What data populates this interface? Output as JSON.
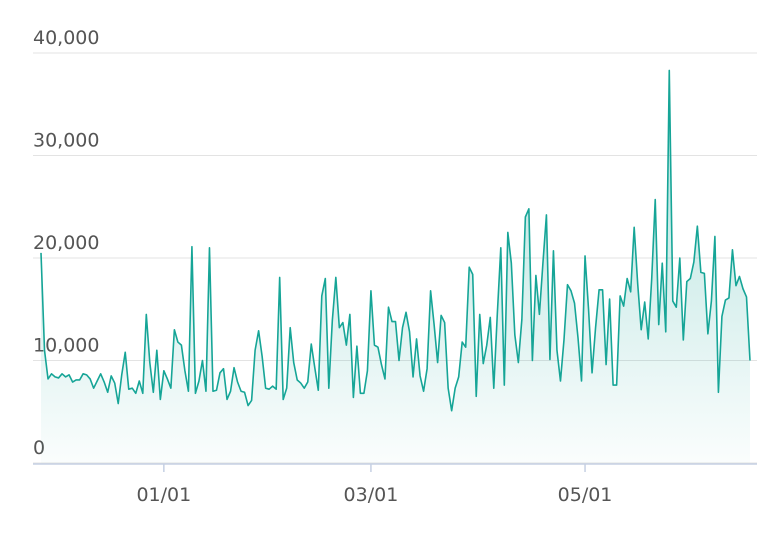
{
  "chart_data": {
    "type": "area",
    "categories": [
      null,
      null,
      null,
      null,
      null,
      null,
      null,
      null,
      null,
      null,
      null,
      null,
      null,
      null,
      null,
      null,
      null,
      null,
      null,
      null,
      null,
      null,
      null,
      null,
      null,
      null,
      null,
      null,
      null,
      null,
      null,
      null,
      null,
      null,
      null,
      "01/01",
      null,
      null,
      null,
      null,
      null,
      null,
      null,
      null,
      null,
      null,
      null,
      null,
      null,
      null,
      null,
      null,
      null,
      null,
      null,
      null,
      null,
      null,
      null,
      null,
      null,
      null,
      null,
      null,
      null,
      null,
      null,
      null,
      null,
      null,
      null,
      null,
      null,
      null,
      null,
      null,
      null,
      null,
      null,
      null,
      null,
      null,
      null,
      null,
      null,
      null,
      null,
      null,
      null,
      null,
      null,
      null,
      null,
      null,
      "03/01",
      null,
      null,
      null,
      null,
      null,
      null,
      null,
      null,
      null,
      null,
      null,
      null,
      null,
      null,
      null,
      null,
      null,
      null,
      null,
      null,
      null,
      null,
      null,
      null,
      null,
      null,
      null,
      null,
      null,
      null,
      null,
      null,
      null,
      null,
      null,
      null,
      null,
      null,
      null,
      null,
      null,
      null,
      null,
      null,
      null,
      null,
      null,
      null,
      null,
      null,
      null,
      null,
      null,
      null,
      null,
      null,
      null,
      null,
      null,
      null,
      "05/01",
      null,
      null,
      null,
      null,
      null,
      null,
      null,
      null,
      null,
      null,
      null,
      null,
      null,
      null,
      null,
      null,
      null,
      null,
      null,
      null,
      null,
      null,
      null,
      null,
      null,
      null,
      null,
      null,
      null,
      null,
      null,
      null,
      null,
      null,
      null,
      null,
      null,
      null,
      null,
      null,
      null,
      null,
      null,
      null,
      null,
      null,
      null
    ],
    "values": [
      20500,
      11000,
      8200,
      8700,
      8400,
      8300,
      8700,
      8400,
      8600,
      7900,
      8100,
      8100,
      8700,
      8600,
      8200,
      7300,
      8000,
      8700,
      7900,
      6900,
      8500,
      7800,
      5800,
      8600,
      10800,
      7200,
      7300,
      6800,
      8000,
      6800,
      14500,
      9800,
      6900,
      11000,
      6200,
      9000,
      8200,
      7300,
      13000,
      11800,
      11500,
      9000,
      7000,
      21100,
      6800,
      8000,
      10000,
      7000,
      21000,
      7000,
      7100,
      8800,
      9200,
      6200,
      7000,
      9300,
      7900,
      7000,
      6900,
      5600,
      6100,
      11000,
      12900,
      10400,
      7300,
      7200,
      7500,
      7200,
      18100,
      6200,
      7300,
      13200,
      9800,
      8100,
      7800,
      7300,
      7900,
      11600,
      9300,
      7100,
      16300,
      18000,
      7300,
      13900,
      18100,
      13200,
      13700,
      11500,
      14500,
      6400,
      11400,
      6800,
      6800,
      9000,
      16800,
      11500,
      11300,
      9600,
      8200,
      15200,
      13800,
      13800,
      10000,
      13200,
      14700,
      12800,
      8400,
      12100,
      8500,
      7000,
      9200,
      16800,
      13500,
      9800,
      14400,
      13700,
      7300,
      5100,
      7300,
      8400,
      11800,
      11300,
      19100,
      18400,
      6500,
      14500,
      9700,
      11500,
      14200,
      7300,
      14500,
      21000,
      7600,
      22500,
      19500,
      12500,
      9800,
      14000,
      24000,
      24800,
      10000,
      18300,
      14500,
      19500,
      24200,
      10100,
      20700,
      11000,
      8000,
      12000,
      17400,
      16800,
      15600,
      12200,
      8000,
      20200,
      15000,
      8800,
      13200,
      16900,
      16900,
      9600,
      16000,
      7600,
      7600,
      16300,
      15300,
      18000,
      16700,
      23000,
      17500,
      13000,
      15700,
      12100,
      18000,
      25700,
      13500,
      19500,
      12800,
      38300,
      15800,
      15200,
      20000,
      12000,
      17700,
      18000,
      19600,
      23100,
      18600,
      18500,
      12600,
      15800,
      22100,
      6900,
      14300,
      15900,
      16100,
      20800,
      17300,
      18200,
      17000,
      16200,
      10000
    ],
    "color": "#16a597",
    "ylim": [
      0,
      40000
    ],
    "yticks": [
      0,
      {
        "value": 10000,
        "label": "10,000"
      },
      {
        "value": 20000,
        "label": "20,000"
      },
      {
        "value": 30000,
        "label": "30,000"
      },
      {
        "value": 40000,
        "label": "40,000"
      }
    ],
    "grid": true
  }
}
